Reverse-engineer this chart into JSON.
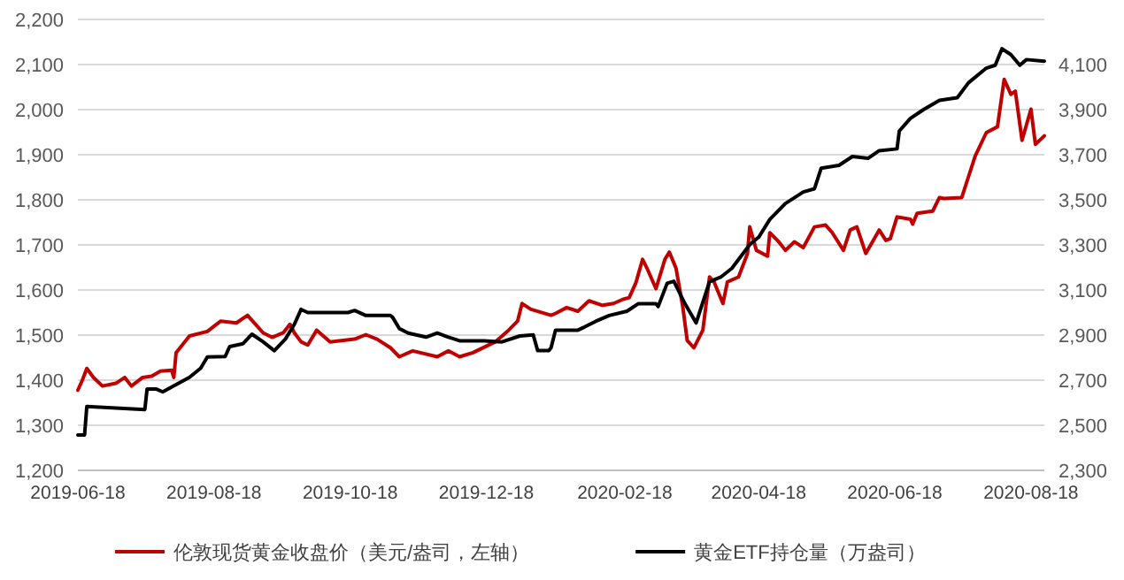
{
  "chart_data": {
    "type": "line",
    "legend": "bottom",
    "grid": "y",
    "marker": "none",
    "line_style": "solid",
    "xlim": [
      "2019-06-18",
      "2020-08-24"
    ],
    "xticks": [
      "2019-06-18",
      "2019-08-18",
      "2019-10-18",
      "2019-12-18",
      "2020-02-18",
      "2020-04-18",
      "2020-06-18",
      "2020-08-18"
    ],
    "ylim": [
      1200,
      2200
    ],
    "yticks": [
      {
        "value": 1200,
        "label": "1,200"
      },
      {
        "value": 1300,
        "label": "1,300"
      },
      {
        "value": 1400,
        "label": "1,400"
      },
      {
        "value": 1500,
        "label": "1,500"
      },
      {
        "value": 1600,
        "label": "1,600"
      },
      {
        "value": 1700,
        "label": "1,700"
      },
      {
        "value": 1800,
        "label": "1,800"
      },
      {
        "value": 1900,
        "label": "1,900"
      },
      {
        "value": 2000,
        "label": "2,000"
      },
      {
        "value": 2100,
        "label": "2,100"
      },
      {
        "value": 2200,
        "label": "2,200"
      }
    ],
    "y2lim": [
      2300,
      4300
    ],
    "y2ticks": [
      {
        "value": 2300,
        "label": "2,300"
      },
      {
        "value": 2500,
        "label": "2,500"
      },
      {
        "value": 2700,
        "label": "2,700"
      },
      {
        "value": 2900,
        "label": "2,900"
      },
      {
        "value": 3100,
        "label": "3,100"
      },
      {
        "value": 3300,
        "label": "3,300"
      },
      {
        "value": 3500,
        "label": "3,500"
      },
      {
        "value": 3700,
        "label": "3,700"
      },
      {
        "value": 3900,
        "label": "3,900"
      },
      {
        "value": 4100,
        "label": "4,100"
      }
    ],
    "series": [
      {
        "name": "伦敦现货黄金收盘价（美元/盎司，左轴）",
        "color": "#c00000",
        "x": [
          "2019-06-18",
          "2019-06-20",
          "2019-06-22",
          "2019-06-25",
          "2019-06-29",
          "2019-07-05",
          "2019-07-09",
          "2019-07-12",
          "2019-07-17",
          "2019-07-21",
          "2019-07-25",
          "2019-07-30",
          "2019-07-31",
          "2019-08-01",
          "2019-08-07",
          "2019-08-15",
          "2019-08-21",
          "2019-08-28",
          "2019-09-02",
          "2019-09-09",
          "2019-09-13",
          "2019-09-18",
          "2019-09-21",
          "2019-09-23",
          "2019-09-26",
          "2019-09-29",
          "2019-10-03",
          "2019-10-09",
          "2019-10-20",
          "2019-10-25",
          "2019-10-30",
          "2019-11-05",
          "2019-11-09",
          "2019-11-15",
          "2019-11-26",
          "2019-12-01",
          "2019-12-06",
          "2019-12-12",
          "2019-12-22",
          "2019-12-28",
          "2020-01-01",
          "2020-01-03",
          "2020-01-07",
          "2020-01-16",
          "2020-01-18",
          "2020-01-23",
          "2020-01-28",
          "2020-02-02",
          "2020-02-08",
          "2020-02-13",
          "2020-02-17",
          "2020-02-20",
          "2020-02-23",
          "2020-02-26",
          "2020-02-28",
          "2020-03-03",
          "2020-03-07",
          "2020-03-09",
          "2020-03-12",
          "2020-03-15",
          "2020-03-17",
          "2020-03-20",
          "2020-03-24",
          "2020-03-27",
          "2020-03-29",
          "2020-04-02",
          "2020-04-04",
          "2020-04-09",
          "2020-04-13",
          "2020-04-14",
          "2020-04-17",
          "2020-04-22",
          "2020-04-23",
          "2020-04-27",
          "2020-04-30",
          "2020-05-04",
          "2020-05-08",
          "2020-05-13",
          "2020-05-18",
          "2020-05-21",
          "2020-05-26",
          "2020-05-29",
          "2020-06-01",
          "2020-06-05",
          "2020-06-11",
          "2020-06-14",
          "2020-06-16",
          "2020-06-19",
          "2020-06-25",
          "2020-06-26",
          "2020-06-28",
          "2020-07-05",
          "2020-07-08",
          "2020-07-10",
          "2020-07-18",
          "2020-07-21",
          "2020-07-24",
          "2020-07-29",
          "2020-08-03",
          "2020-08-06",
          "2020-08-09",
          "2020-08-11",
          "2020-08-14",
          "2020-08-18",
          "2020-08-20",
          "2020-08-24"
        ],
        "values": [
          1378,
          1400,
          1426,
          1406,
          1387,
          1393,
          1406,
          1387,
          1406,
          1409,
          1420,
          1422,
          1406,
          1461,
          1498,
          1508,
          1531,
          1527,
          1544,
          1505,
          1495,
          1505,
          1524,
          1505,
          1485,
          1478,
          1511,
          1485,
          1491,
          1501,
          1491,
          1472,
          1452,
          1465,
          1452,
          1465,
          1452,
          1461,
          1485,
          1511,
          1531,
          1570,
          1557,
          1544,
          1548,
          1561,
          1553,
          1576,
          1566,
          1570,
          1579,
          1583,
          1616,
          1668,
          1648,
          1603,
          1668,
          1684,
          1648,
          1563,
          1488,
          1472,
          1511,
          1629,
          1618,
          1570,
          1618,
          1629,
          1681,
          1740,
          1688,
          1675,
          1727,
          1707,
          1688,
          1707,
          1694,
          1740,
          1744,
          1727,
          1688,
          1733,
          1740,
          1681,
          1733,
          1710,
          1714,
          1762,
          1757,
          1746,
          1770,
          1775,
          1805,
          1803,
          1805,
          1851,
          1897,
          1949,
          1962,
          2067,
          2034,
          2041,
          1932,
          2001,
          1923,
          1942
        ]
      },
      {
        "name": "黄金ETF持仓量（万盎司）",
        "color": "#000000",
        "axis": "y2",
        "x": [
          "2019-06-18",
          "2019-06-21",
          "2019-06-22",
          "2019-07-18",
          "2019-07-19",
          "2019-07-23",
          "2019-07-26",
          "2019-08-07",
          "2019-08-12",
          "2019-08-15",
          "2019-08-23",
          "2019-08-25",
          "2019-08-31",
          "2019-09-04",
          "2019-09-09",
          "2019-09-14",
          "2019-09-19",
          "2019-09-23",
          "2019-09-26",
          "2019-09-29",
          "2019-10-17",
          "2019-10-20",
          "2019-10-25",
          "2019-11-05",
          "2019-11-06",
          "2019-11-09",
          "2019-11-13",
          "2019-11-21",
          "2019-11-26",
          "2019-12-01",
          "2019-12-06",
          "2019-12-17",
          "2019-12-25",
          "2020-01-02",
          "2020-01-08",
          "2020-01-10",
          "2020-01-15",
          "2020-01-16",
          "2020-01-18",
          "2020-01-28",
          "2020-01-31",
          "2020-02-05",
          "2020-02-11",
          "2020-02-19",
          "2020-02-24",
          "2020-03-03",
          "2020-03-04",
          "2020-03-08",
          "2020-03-11",
          "2020-03-14",
          "2020-03-16",
          "2020-03-21",
          "2020-03-27",
          "2020-04-01",
          "2020-04-06",
          "2020-04-14",
          "2020-04-18",
          "2020-04-23",
          "2020-04-30",
          "2020-05-08",
          "2020-05-13",
          "2020-05-16",
          "2020-05-24",
          "2020-05-30",
          "2020-06-06",
          "2020-06-11",
          "2020-06-19",
          "2020-06-20",
          "2020-06-25",
          "2020-07-01",
          "2020-07-08",
          "2020-07-16",
          "2020-07-21",
          "2020-07-29",
          "2020-08-02",
          "2020-08-05",
          "2020-08-09",
          "2020-08-13",
          "2020-08-16",
          "2020-08-24"
        ],
        "values": [
          2457,
          2457,
          2583,
          2570,
          2661,
          2661,
          2648,
          2713,
          2753,
          2803,
          2805,
          2849,
          2862,
          2904,
          2870,
          2831,
          2883,
          2948,
          3014,
          3000,
          3000,
          3009,
          2987,
          2987,
          2979,
          2929,
          2909,
          2891,
          2909,
          2891,
          2875,
          2875,
          2870,
          2896,
          2901,
          2831,
          2831,
          2844,
          2922,
          2922,
          2936,
          2961,
          2987,
          3006,
          3039,
          3039,
          3027,
          3130,
          3139,
          3079,
          3039,
          2954,
          3137,
          3157,
          3196,
          3301,
          3334,
          3413,
          3484,
          3535,
          3549,
          3640,
          3653,
          3692,
          3684,
          3718,
          3726,
          3805,
          3861,
          3901,
          3941,
          3953,
          4019,
          4084,
          4097,
          4170,
          4144,
          4097,
          4122,
          4115
        ]
      }
    ]
  }
}
